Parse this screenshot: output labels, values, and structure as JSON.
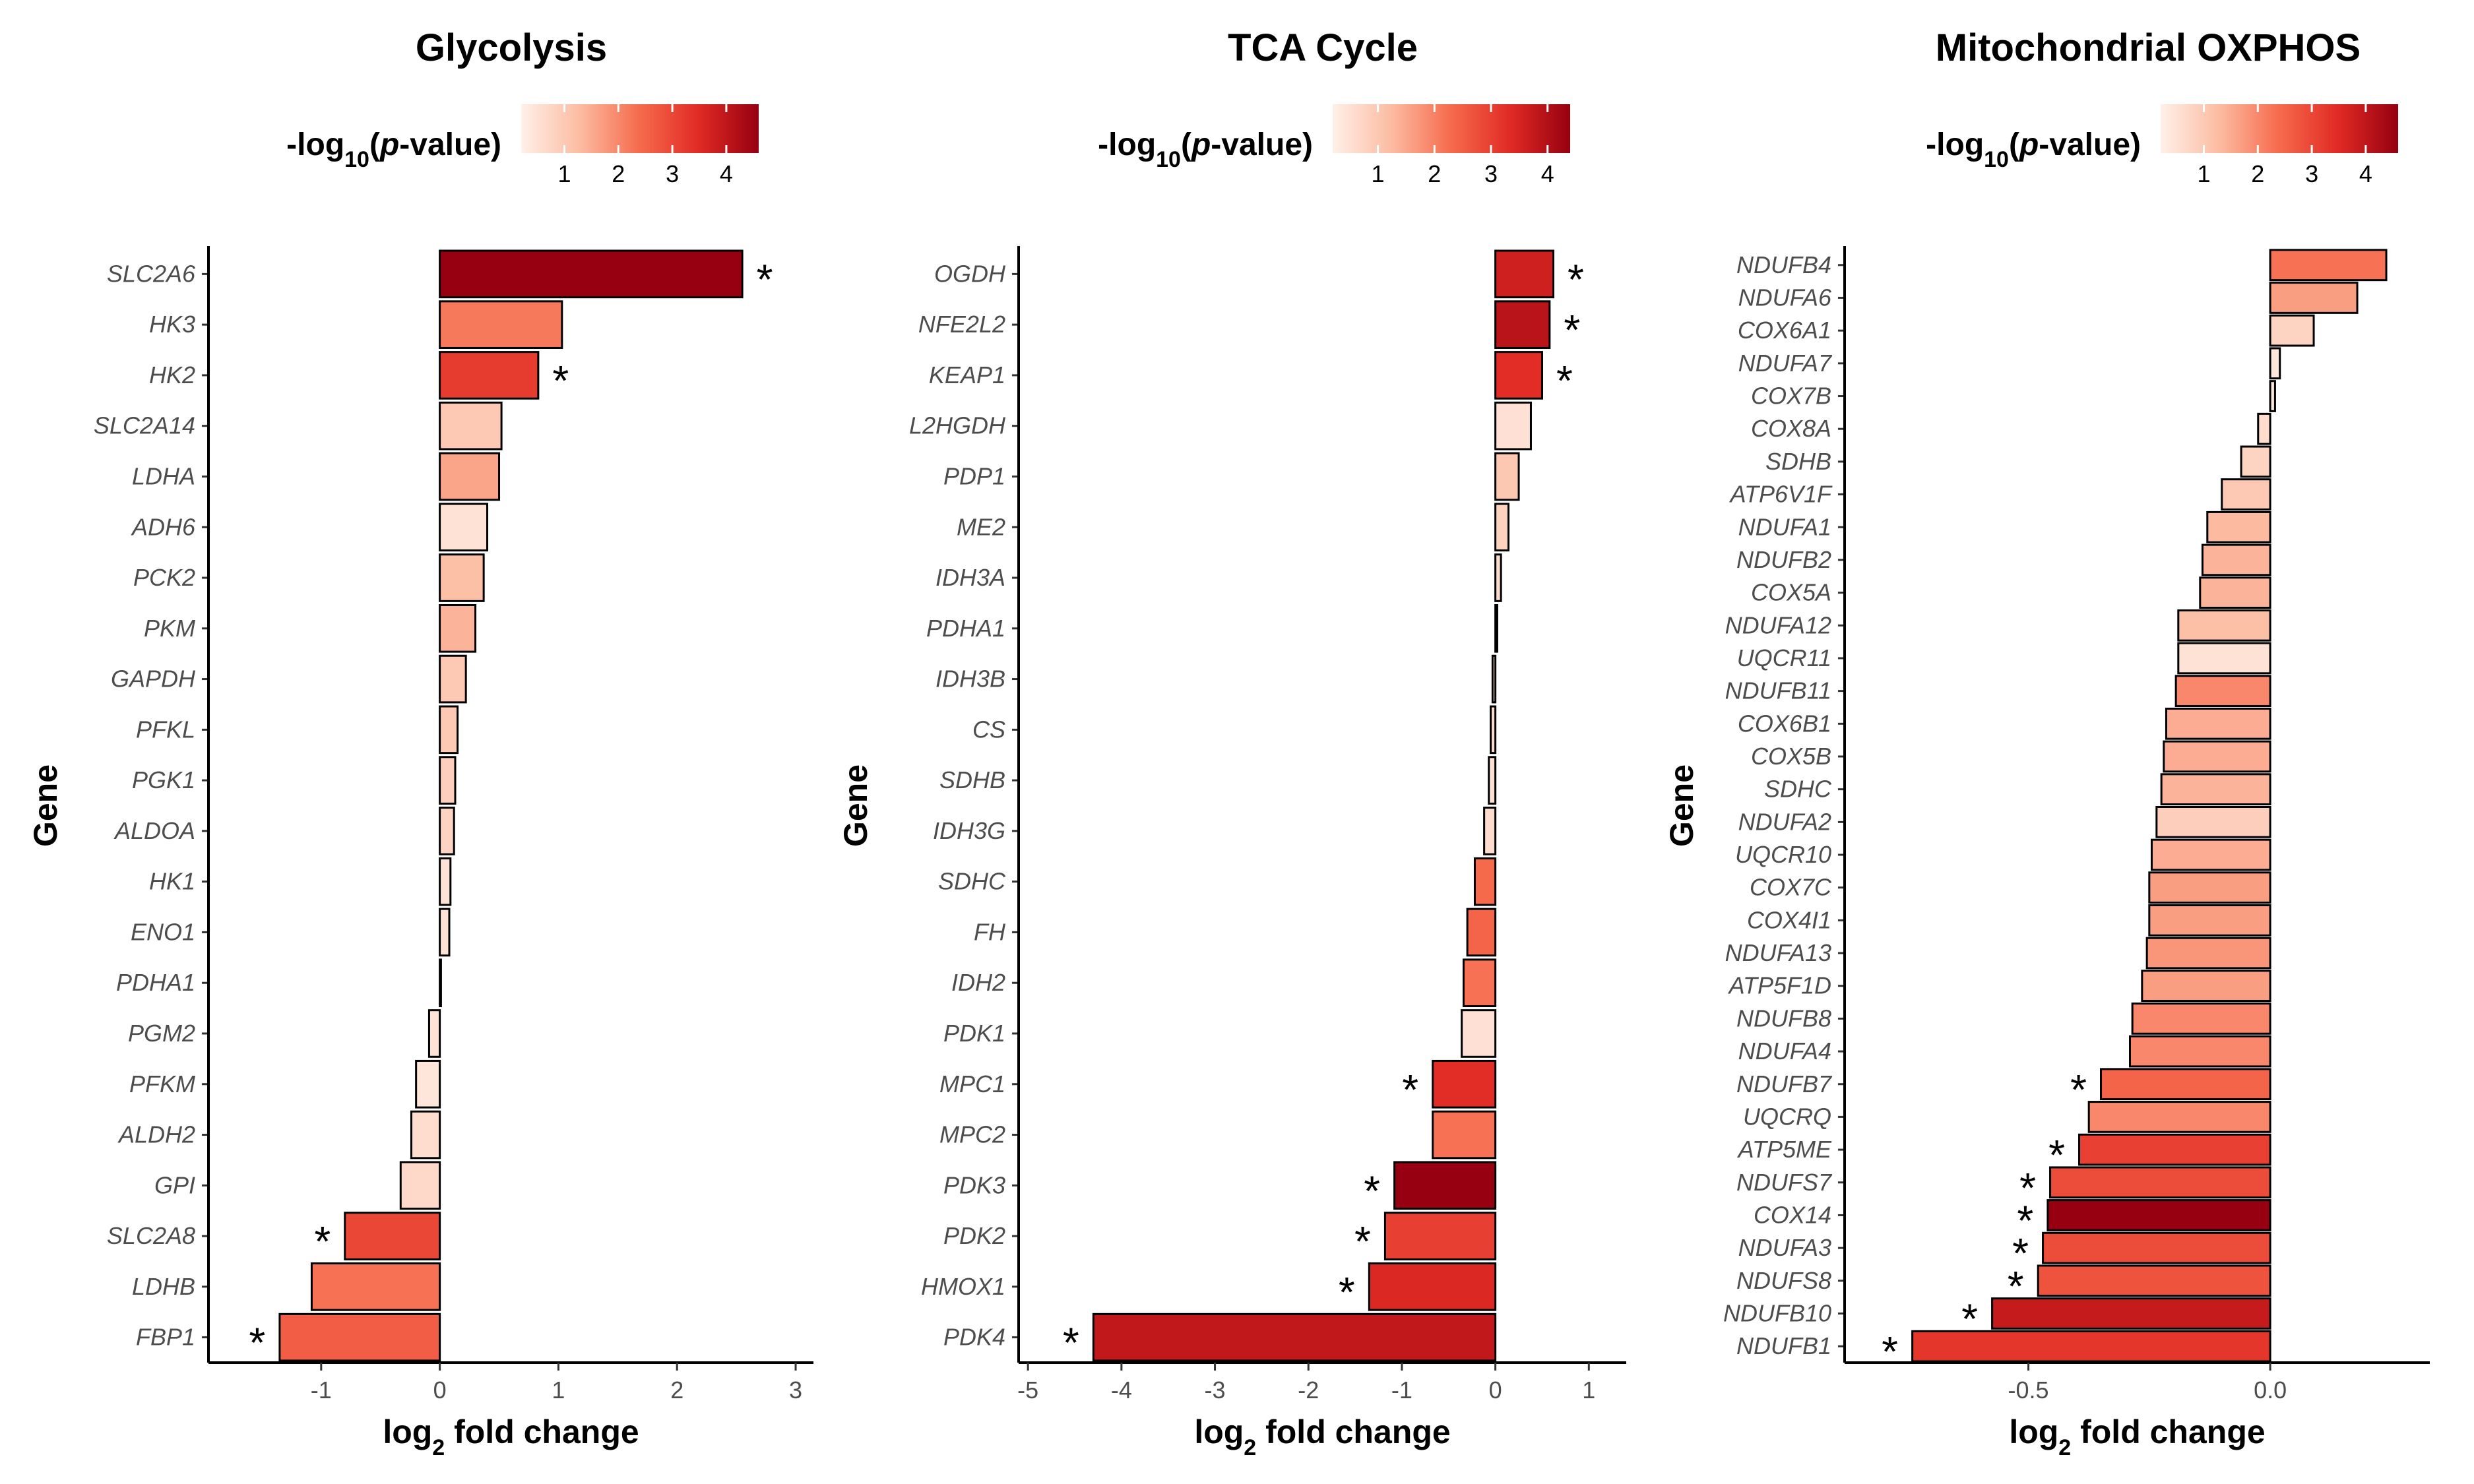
{
  "figure": {
    "legend_title_prefix": "-log",
    "legend_title_sub": "10",
    "legend_title_open": "(",
    "legend_title_p": "p",
    "legend_title_suffix": "-value)"
  },
  "colors": {
    "scale_low": "#fff0e8",
    "scale_mid1": "#fcbba1",
    "scale_mid2": "#f66a4c",
    "scale_mid3": "#e02a24",
    "scale_high": "#960010",
    "bar_stroke": "#000000"
  },
  "chart_data": [
    {
      "type": "bar",
      "orientation": "horizontal",
      "title": "Glycolysis",
      "xlabel_main": "log",
      "xlabel_sub": "2",
      "xlabel_rest": " fold change",
      "ylabel": "Gene",
      "xlim": [
        -1.95,
        3.15
      ],
      "xticks": [
        -1,
        0,
        1,
        2,
        3
      ],
      "xtick_labels": [
        "-1",
        "0",
        "1",
        "2",
        "3"
      ],
      "legend_range": [
        0.2,
        4.6
      ],
      "legend_ticks": [
        1,
        2,
        3,
        4
      ],
      "legend_tick_labels": [
        "1",
        "2",
        "3",
        "4"
      ],
      "categories": [
        "SLC2A6",
        "HK3",
        "HK2",
        "SLC2A14",
        "LDHA",
        "ADH6",
        "PCK2",
        "PKM",
        "GAPDH",
        "PFKL",
        "PGK1",
        "ALDOA",
        "HK1",
        "ENO1",
        "PDHA1",
        "PGM2",
        "PFKM",
        "ALDH2",
        "GPI",
        "SLC2A8",
        "LDHB",
        "FBP1"
      ],
      "values": [
        2.55,
        1.03,
        0.83,
        0.52,
        0.5,
        0.4,
        0.37,
        0.3,
        0.22,
        0.15,
        0.13,
        0.12,
        0.09,
        0.08,
        0.01,
        -0.09,
        -0.2,
        -0.24,
        -0.33,
        -0.8,
        -1.08,
        -1.35
      ],
      "neglog10_p": [
        4.6,
        2.2,
        3.2,
        1.0,
        1.6,
        0.5,
        1.2,
        1.4,
        1.0,
        1.0,
        0.9,
        0.8,
        0.5,
        0.5,
        0.4,
        0.5,
        0.4,
        0.6,
        0.7,
        3.0,
        2.3,
        2.6
      ],
      "significant": [
        true,
        false,
        true,
        false,
        false,
        false,
        false,
        false,
        false,
        false,
        false,
        false,
        false,
        false,
        false,
        false,
        false,
        false,
        false,
        true,
        false,
        true
      ],
      "star_label": "*"
    },
    {
      "type": "bar",
      "orientation": "horizontal",
      "title": "TCA Cycle",
      "xlabel_main": "log",
      "xlabel_sub": "2",
      "xlabel_rest": " fold change",
      "ylabel": "Gene",
      "xlim": [
        -5.1,
        1.4
      ],
      "xticks": [
        -5,
        -4,
        -3,
        -2,
        -1,
        0,
        1
      ],
      "xtick_labels": [
        "-5",
        "-4",
        "-3",
        "-2",
        "-1",
        "0",
        "1"
      ],
      "legend_range": [
        0.2,
        4.4
      ],
      "legend_ticks": [
        1,
        2,
        3,
        4
      ],
      "legend_tick_labels": [
        "1",
        "2",
        "3",
        "4"
      ],
      "categories": [
        "OGDH",
        "NFE2L2",
        "KEAP1",
        "L2HGDH",
        "PDP1",
        "ME2",
        "IDH3A",
        "PDHA1",
        "IDH3B",
        "CS",
        "SDHB",
        "IDH3G",
        "SDHC",
        "FH",
        "IDH2",
        "PDK1",
        "MPC1",
        "MPC2",
        "PDK3",
        "PDK2",
        "HMOX1",
        "PDK4"
      ],
      "values": [
        0.62,
        0.58,
        0.5,
        0.38,
        0.25,
        0.14,
        0.06,
        0.02,
        -0.03,
        -0.05,
        -0.07,
        -0.12,
        -0.22,
        -0.3,
        -0.34,
        -0.36,
        -0.67,
        -0.67,
        -1.08,
        -1.18,
        -1.35,
        -4.3
      ],
      "neglog10_p": [
        3.6,
        3.9,
        3.3,
        0.5,
        1.0,
        0.8,
        0.6,
        0.4,
        0.4,
        0.6,
        0.5,
        0.6,
        2.3,
        2.4,
        2.2,
        0.5,
        3.3,
        2.2,
        4.4,
        3.0,
        3.4,
        3.8
      ],
      "significant": [
        true,
        true,
        true,
        false,
        false,
        false,
        false,
        false,
        false,
        false,
        false,
        false,
        false,
        false,
        false,
        false,
        true,
        false,
        true,
        true,
        true,
        true
      ],
      "star_label": "*"
    },
    {
      "type": "bar",
      "orientation": "horizontal",
      "title": "Mitochondrial OXPHOS",
      "xlabel_main": "log",
      "xlabel_sub": "2",
      "xlabel_rest": " fold change",
      "ylabel": "Gene",
      "xlim": [
        -0.88,
        0.33
      ],
      "xticks": [
        -0.5,
        0.0
      ],
      "xtick_labels": [
        "-0.5",
        "0.0"
      ],
      "legend_range": [
        0.2,
        4.6
      ],
      "legend_ticks": [
        1,
        2,
        3,
        4
      ],
      "legend_tick_labels": [
        "1",
        "2",
        "3",
        "4"
      ],
      "categories": [
        "NDUFB4",
        "NDUFA6",
        "COX6A1",
        "NDUFA7",
        "COX7B",
        "COX8A",
        "SDHB",
        "ATP6V1F",
        "NDUFA1",
        "NDUFB2",
        "COX5A",
        "NDUFA12",
        "UQCR11",
        "NDUFB11",
        "COX6B1",
        "COX5B",
        "SDHC",
        "NDUFA2",
        "UQCR10",
        "COX7C",
        "COX4I1",
        "NDUFA13",
        "ATP5F1D",
        "NDUFB8",
        "NDUFA4",
        "NDUFB7",
        "UQCRQ",
        "ATP5ME",
        "NDUFS7",
        "COX14",
        "NDUFA3",
        "NDUFS8",
        "NDUFB10",
        "NDUFB1"
      ],
      "values": [
        0.24,
        0.18,
        0.09,
        0.02,
        0.01,
        -0.025,
        -0.06,
        -0.1,
        -0.13,
        -0.14,
        -0.145,
        -0.19,
        -0.19,
        -0.195,
        -0.215,
        -0.22,
        -0.225,
        -0.235,
        -0.245,
        -0.25,
        -0.25,
        -0.255,
        -0.265,
        -0.285,
        -0.29,
        -0.35,
        -0.375,
        -0.395,
        -0.455,
        -0.46,
        -0.47,
        -0.48,
        -0.575,
        -0.74
      ],
      "neglog10_p": [
        2.3,
        1.7,
        0.8,
        0.4,
        0.4,
        0.6,
        0.8,
        1.0,
        1.3,
        1.4,
        1.4,
        1.2,
        0.5,
        2.0,
        1.5,
        1.5,
        1.4,
        0.9,
        1.5,
        1.7,
        1.7,
        1.8,
        1.7,
        2.0,
        2.0,
        2.5,
        2.0,
        3.1,
        2.9,
        4.6,
        2.9,
        2.8,
        3.9,
        3.3
      ],
      "significant": [
        false,
        false,
        false,
        false,
        false,
        false,
        false,
        false,
        false,
        false,
        false,
        false,
        false,
        false,
        false,
        false,
        false,
        false,
        false,
        false,
        false,
        false,
        false,
        false,
        false,
        true,
        false,
        true,
        true,
        true,
        true,
        true,
        true,
        true
      ],
      "star_label": "*"
    }
  ]
}
